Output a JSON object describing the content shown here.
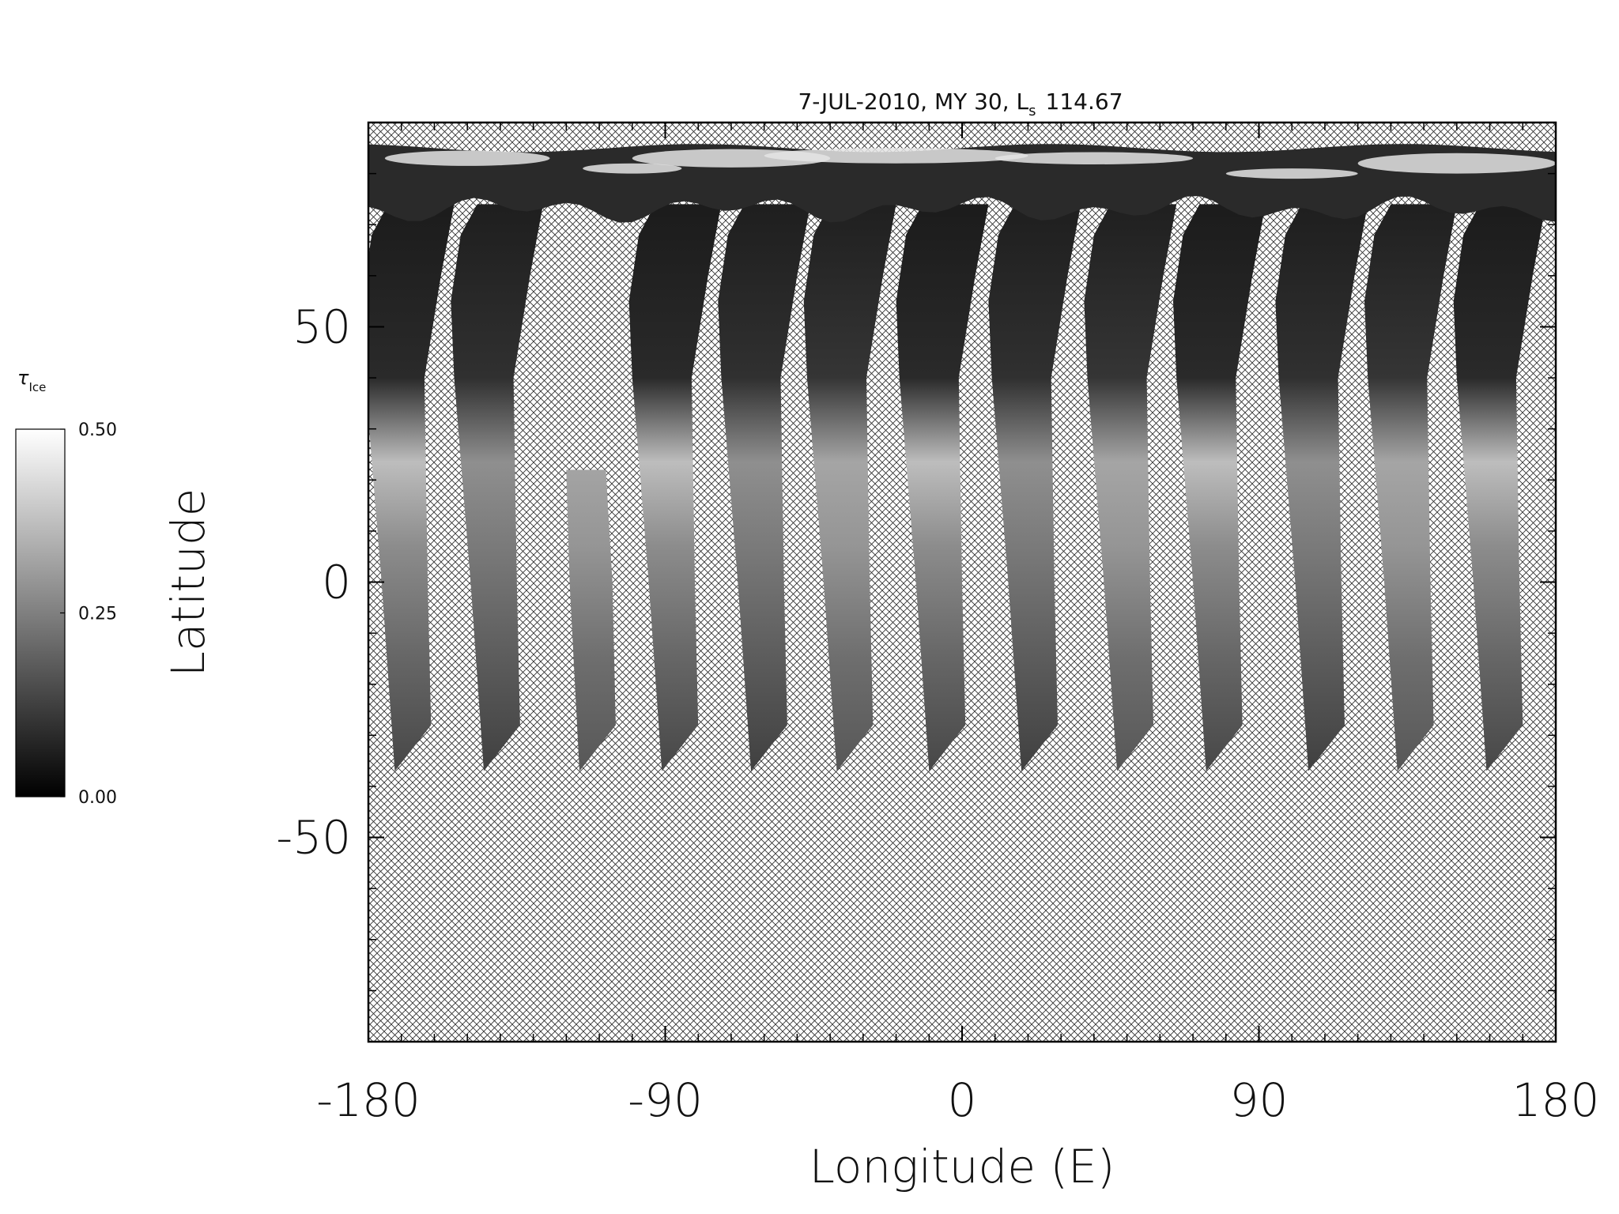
{
  "chart_data": {
    "type": "map",
    "title": "7-JUL-2010, MY 30, L",
    "title_subscript": "s",
    "ls": 114.67,
    "xlabel": "Longitude (E)",
    "ylabel": "Latitude",
    "xlim": [
      -180,
      180
    ],
    "xticks": [
      -180,
      -90,
      0,
      90,
      180
    ],
    "x_minor_step": 10,
    "ylim": [
      -90,
      90
    ],
    "yticks": [
      -50,
      0,
      50
    ],
    "y_minor_step": 10,
    "colorbar": {
      "label": "τ",
      "label_subscript": "Ice",
      "range": [
        0,
        0.5
      ],
      "ticks": [
        {
          "value": 0,
          "label": "0.00"
        },
        {
          "value": 0.25,
          "label": "0.25"
        },
        {
          "value": 0.5,
          "label": "0.50"
        }
      ]
    }
  }
}
